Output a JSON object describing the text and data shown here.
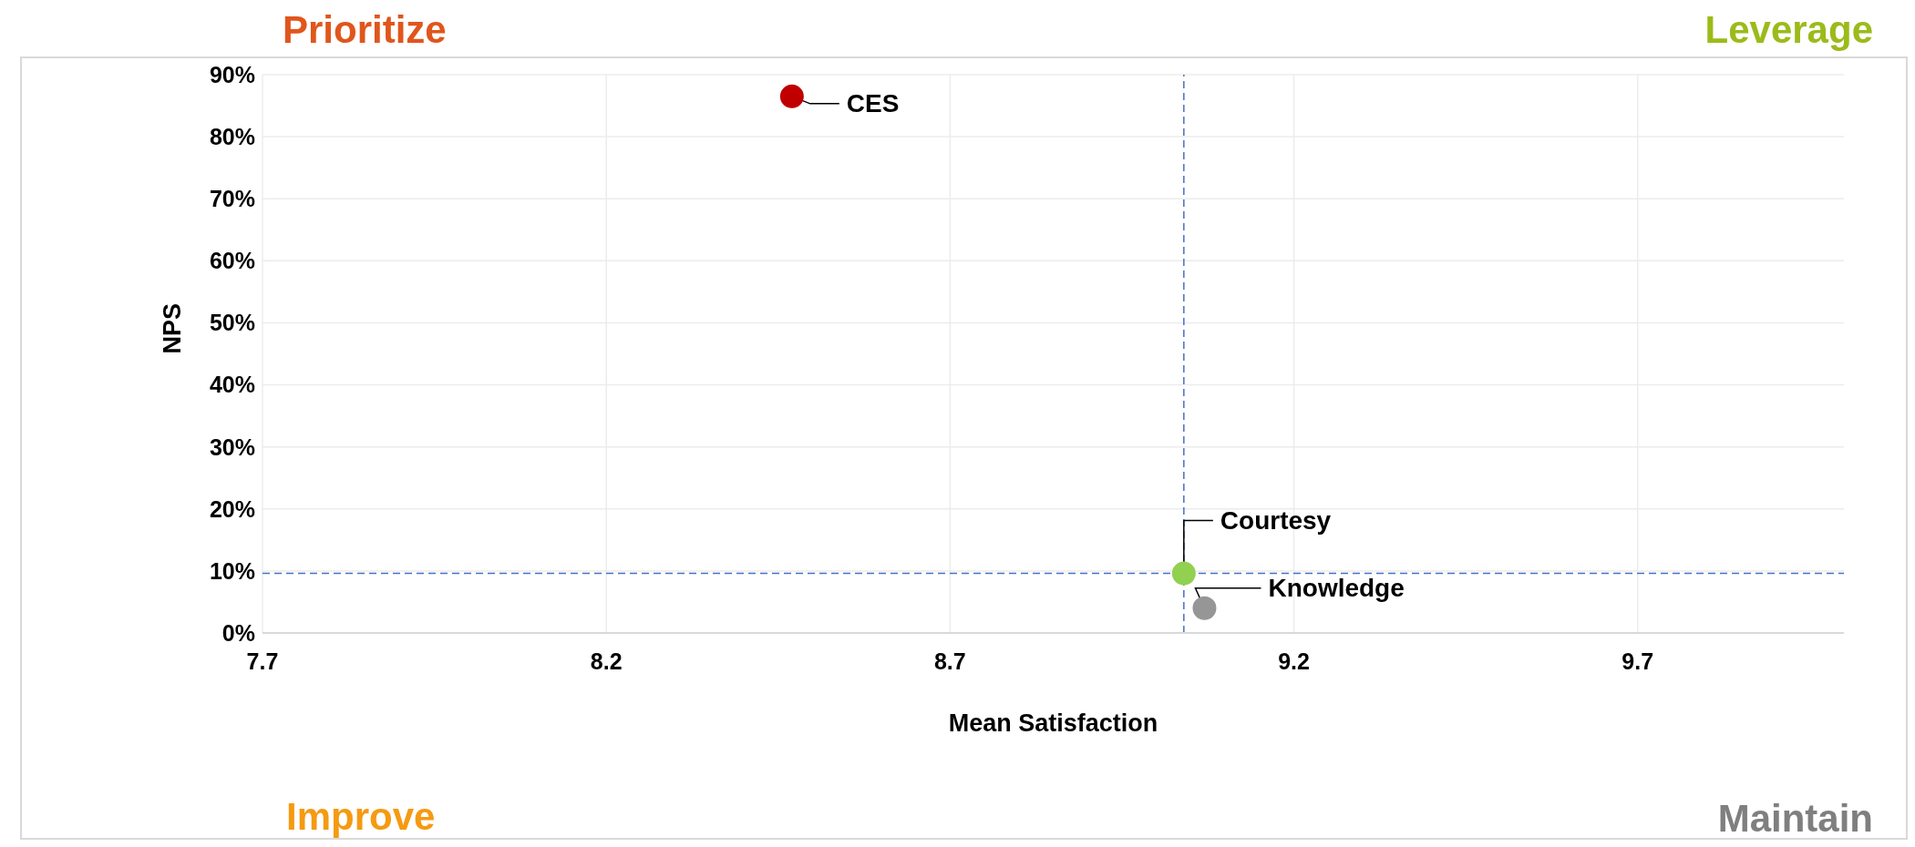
{
  "chart_data": {
    "type": "scatter",
    "xlabel": "Mean Satisfaction",
    "ylabel": "NPS",
    "annotations": [
      "Prioritize",
      "Leverage",
      "Improve",
      "Maintain"
    ],
    "series": [
      {
        "name": "CES",
        "color": "#c00000",
        "x": [
          8.47
        ],
        "values": [
          86.5
        ]
      },
      {
        "name": "Courtesy",
        "color": "#92d050",
        "x": [
          9.04
        ],
        "values": [
          9.6
        ]
      },
      {
        "name": "Knowledge",
        "color": "#969696",
        "x": [
          9.07
        ],
        "values": [
          4.0
        ]
      }
    ],
    "xlim": [
      7.7,
      10.0
    ],
    "xticks": [
      7.7,
      8.2,
      8.7,
      9.2,
      9.7
    ],
    "ylim": [
      0,
      90
    ],
    "yticks": [
      {
        "value": 0,
        "label": "0%"
      },
      {
        "value": 10,
        "label": "10%"
      },
      {
        "value": 20,
        "label": "20%"
      },
      {
        "value": 30,
        "label": "30%"
      },
      {
        "value": 40,
        "label": "40%"
      },
      {
        "value": 50,
        "label": "50%"
      },
      {
        "value": 60,
        "label": "60%"
      },
      {
        "value": 70,
        "label": "70%"
      },
      {
        "value": 80,
        "label": "80%"
      },
      {
        "value": 90,
        "label": "90%"
      }
    ],
    "ref_lines": [
      {
        "axis": "x",
        "value": 9.04,
        "color": "#4472c4",
        "line_style": "dashed"
      },
      {
        "axis": "y",
        "value": 9.6,
        "color": "#4472c4",
        "line_style": "dashed"
      }
    ],
    "grid": true,
    "legend": false,
    "marker": "circle"
  }
}
